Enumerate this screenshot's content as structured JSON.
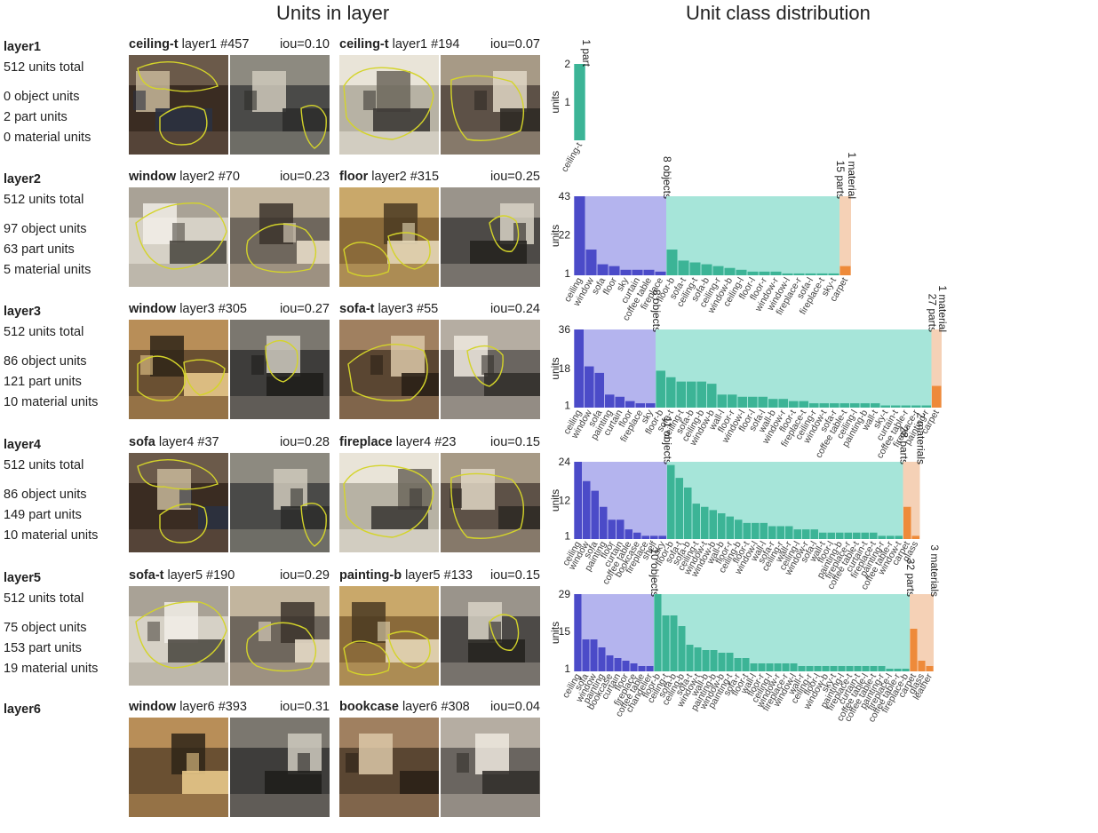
{
  "titles": {
    "left": "Units in layer",
    "right": "Unit class distribution"
  },
  "colors": {
    "object_bar": "#4b4bc8",
    "object_bg": "#b4b4ee",
    "part_bar": "#3cb496",
    "part_bg": "#a6e5d9",
    "material_bar": "#ee8a3a",
    "material_bg": "#f5d1b6",
    "contour": "#d4d42a"
  },
  "layers": [
    {
      "name": "layer1",
      "total": "512 units total",
      "objects": "0 object units",
      "parts": "2 part units",
      "materials": "0 material units",
      "units": [
        {
          "label": "ceiling-t",
          "meta": "layer1 #457",
          "iou": "iou=0.10"
        },
        {
          "label": "ceiling-t",
          "meta": "layer1 #194",
          "iou": "iou=0.07"
        }
      ]
    },
    {
      "name": "layer2",
      "total": "512 units total",
      "objects": "97 object units",
      "parts": "63 part units",
      "materials": "5 material units",
      "units": [
        {
          "label": "window",
          "meta": "layer2 #70",
          "iou": "iou=0.23"
        },
        {
          "label": "floor",
          "meta": "layer2 #315",
          "iou": "iou=0.25"
        }
      ]
    },
    {
      "name": "layer3",
      "total": "512 units total",
      "objects": "86 object units",
      "parts": "121 part units",
      "materials": "10 material units",
      "units": [
        {
          "label": "window",
          "meta": "layer3 #305",
          "iou": "iou=0.27"
        },
        {
          "label": "sofa-t",
          "meta": "layer3 #55",
          "iou": "iou=0.24"
        }
      ]
    },
    {
      "name": "layer4",
      "total": "512 units total",
      "objects": "86 object units",
      "parts": "149 part units",
      "materials": "10 material units",
      "units": [
        {
          "label": "sofa",
          "meta": "layer4 #37",
          "iou": "iou=0.28"
        },
        {
          "label": "fireplace",
          "meta": "layer4 #23",
          "iou": "iou=0.15"
        }
      ]
    },
    {
      "name": "layer5",
      "total": "512 units total",
      "objects": "75 object units",
      "parts": "153 part units",
      "materials": "19 material units",
      "units": [
        {
          "label": "sofa-t",
          "meta": "layer5 #190",
          "iou": "iou=0.29"
        },
        {
          "label": "painting-b",
          "meta": "layer5 #133",
          "iou": "iou=0.15"
        }
      ]
    },
    {
      "name": "layer6",
      "total": "",
      "objects": "",
      "parts": "",
      "materials": "",
      "units": [
        {
          "label": "window",
          "meta": "layer6 #393",
          "iou": "iou=0.31"
        },
        {
          "label": "bookcase",
          "meta": "layer6 #308",
          "iou": "iou=0.04"
        }
      ]
    }
  ],
  "chart_data": [
    {
      "type": "bar",
      "layer": "layer1",
      "ylabel": "units",
      "yticks": [
        1,
        2
      ],
      "ymax": 2,
      "groups": [
        {
          "kind": "part",
          "label": "1 part",
          "categories": [
            "ceiling-t"
          ],
          "values": [
            2
          ]
        }
      ]
    },
    {
      "type": "bar",
      "layer": "layer2",
      "ylabel": "units",
      "yticks": [
        1,
        22,
        43
      ],
      "ymax": 43,
      "groups": [
        {
          "kind": "object",
          "label": "8 objects",
          "categories": [
            "ceiling",
            "window",
            "sofa",
            "floor",
            "sky",
            "curtain",
            "coffee table",
            "fireplace"
          ],
          "values": [
            43,
            14,
            6,
            5,
            3,
            3,
            3,
            2
          ]
        },
        {
          "kind": "part",
          "label": "15 parts",
          "categories": [
            "floor-b",
            "sofa-t",
            "ceiling-t",
            "sofa-b",
            "ceiling-r",
            "window-b",
            "ceiling-l",
            "floor-l",
            "floor-r",
            "window-r",
            "window-l",
            "fireplace-r",
            "sofa-l",
            "fireplace-t",
            "sky-t"
          ],
          "values": [
            14,
            8,
            7,
            6,
            5,
            4,
            3,
            2,
            2,
            2,
            1,
            1,
            1,
            1,
            1
          ]
        },
        {
          "kind": "material",
          "label": "1 material",
          "categories": [
            "carpet"
          ],
          "values": [
            5
          ]
        }
      ]
    },
    {
      "type": "bar",
      "layer": "layer3",
      "ylabel": "units",
      "yticks": [
        1,
        18,
        36
      ],
      "ymax": 36,
      "groups": [
        {
          "kind": "object",
          "label": "8 objects",
          "categories": [
            "ceiling",
            "window",
            "sofa",
            "painting",
            "curtain",
            "floor",
            "fireplace",
            "sky"
          ],
          "values": [
            36,
            19,
            16,
            6,
            5,
            3,
            2,
            2
          ]
        },
        {
          "kind": "part",
          "label": "27 parts",
          "categories": [
            "floor-b",
            "sofa-t",
            "ceiling-t",
            "sofa-b",
            "ceiling-b",
            "window-b",
            "wall-l",
            "floor-r",
            "window-l",
            "floor-l",
            "sofa-l",
            "wall-b",
            "window-r",
            "floor-t",
            "fireplace-t",
            "ceiling-r",
            "window-t",
            "sofa-r",
            "coffee table-t",
            "ceiling-l",
            "painting-b",
            "wall-t",
            "sky-t",
            "curtain-t",
            "coffee table-r",
            "fireplace-r",
            "painting-r"
          ],
          "values": [
            17,
            14,
            12,
            12,
            12,
            11,
            6,
            6,
            5,
            5,
            5,
            4,
            4,
            3,
            3,
            2,
            2,
            2,
            2,
            2,
            2,
            2,
            1,
            1,
            1,
            1,
            1
          ]
        },
        {
          "kind": "material",
          "label": "1 material",
          "categories": [
            "carpet"
          ],
          "values": [
            10
          ]
        }
      ]
    },
    {
      "type": "bar",
      "layer": "layer4",
      "ylabel": "units",
      "yticks": [
        1,
        12,
        24
      ],
      "ymax": 24,
      "groups": [
        {
          "kind": "object",
          "label": "11 objects",
          "categories": [
            "ceiling",
            "window",
            "sofa",
            "painting",
            "floor",
            "curtain",
            "coffee table",
            "bookcase",
            "fireplace",
            "shelf",
            "sky"
          ],
          "values": [
            24,
            18,
            15,
            10,
            6,
            6,
            3,
            2,
            1,
            1,
            1
          ]
        },
        {
          "kind": "part",
          "label": "28 parts",
          "categories": [
            "floor-b",
            "sofa-t",
            "sofa-b",
            "ceiling-t",
            "window-t",
            "window-b",
            "wall-b",
            "floor-r",
            "ceiling-b",
            "floor-t",
            "window-l",
            "wall-l",
            "sofa-r",
            "ceiling-r",
            "wall-r",
            "ceiling-l",
            "window-r",
            "sofa-l",
            "wall-t",
            "floor-l",
            "painting-b",
            "fireplace-r",
            "coffee table-t",
            "curtain-t",
            "fireplace-t",
            "painting-r",
            "coffee table-r",
            "window-t"
          ],
          "values": [
            23,
            19,
            16,
            11,
            10,
            9,
            8,
            7,
            6,
            5,
            5,
            5,
            4,
            4,
            4,
            3,
            3,
            3,
            2,
            2,
            2,
            2,
            2,
            2,
            2,
            1,
            1,
            1
          ]
        },
        {
          "kind": "material",
          "label": "2 materials",
          "categories": [
            "carpet",
            "glass"
          ],
          "values": [
            10,
            1
          ]
        }
      ]
    },
    {
      "type": "bar",
      "layer": "layer5",
      "ylabel": "units",
      "yticks": [
        1,
        15,
        29
      ],
      "ymax": 29,
      "groups": [
        {
          "kind": "object",
          "label": "10 objects",
          "categories": [
            "ceiling",
            "sofa",
            "window",
            "painting",
            "bookcase",
            "curtain",
            "floor",
            "fireplace",
            "coffee table",
            "chandelier"
          ],
          "values": [
            29,
            12,
            12,
            9,
            6,
            5,
            4,
            3,
            2,
            2
          ]
        },
        {
          "kind": "part",
          "label": "32 parts",
          "categories": [
            "floor-b",
            "ceiling-t",
            "sofa-b",
            "ceiling-b",
            "sofa-t",
            "window-t",
            "wall-b",
            "painting-b",
            "window-b",
            "painting-t",
            "sofa-r",
            "floor-t",
            "wall-l",
            "floor-r",
            "ceiling-l",
            "window-r",
            "fireplace-r",
            "window-l",
            "wall-r",
            "ceiling-r",
            "floor-l",
            "window-b",
            "sky-t",
            "painting-l",
            "fireplace-t",
            "curtain-t",
            "coffee table-l",
            "coffee table-t",
            "painting-r",
            "fireplace-l",
            "coffee table-r",
            "fireplace-b"
          ],
          "values": [
            29,
            21,
            21,
            17,
            10,
            9,
            8,
            8,
            7,
            7,
            5,
            5,
            3,
            3,
            3,
            3,
            3,
            3,
            2,
            2,
            2,
            2,
            2,
            2,
            2,
            2,
            2,
            2,
            2,
            1,
            1,
            1
          ]
        },
        {
          "kind": "material",
          "label": "3 materials",
          "categories": [
            "carpet",
            "glass",
            "leather"
          ],
          "values": [
            16,
            4,
            2
          ]
        }
      ]
    }
  ]
}
